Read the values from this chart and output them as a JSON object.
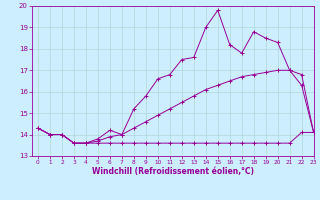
{
  "line1_x": [
    0,
    1,
    2,
    3,
    4,
    5,
    6,
    7,
    8,
    9,
    10,
    11,
    12,
    13,
    14,
    15,
    16,
    17,
    18,
    19,
    20,
    21,
    22,
    23
  ],
  "line1_y": [
    14.3,
    14.0,
    14.0,
    13.6,
    13.6,
    13.6,
    13.6,
    13.6,
    13.6,
    13.6,
    13.6,
    13.6,
    13.6,
    13.6,
    13.6,
    13.6,
    13.6,
    13.6,
    13.6,
    13.6,
    13.6,
    13.6,
    14.1,
    14.1
  ],
  "line2_x": [
    0,
    1,
    2,
    3,
    4,
    5,
    6,
    7,
    8,
    9,
    10,
    11,
    12,
    13,
    14,
    15,
    16,
    17,
    18,
    19,
    20,
    21,
    22,
    23
  ],
  "line2_y": [
    14.3,
    14.0,
    14.0,
    13.6,
    13.6,
    13.7,
    13.9,
    14.0,
    14.3,
    14.6,
    14.9,
    15.2,
    15.5,
    15.8,
    16.1,
    16.3,
    16.5,
    16.7,
    16.8,
    16.9,
    17.0,
    17.0,
    16.8,
    14.1
  ],
  "line3_x": [
    0,
    1,
    2,
    3,
    4,
    5,
    6,
    7,
    8,
    9,
    10,
    11,
    12,
    13,
    14,
    15,
    16,
    17,
    18,
    19,
    20,
    21,
    22,
    23
  ],
  "line3_y": [
    14.3,
    14.0,
    14.0,
    13.6,
    13.6,
    13.8,
    14.2,
    14.0,
    15.2,
    15.8,
    16.6,
    16.8,
    17.5,
    17.6,
    19.0,
    19.8,
    18.2,
    17.8,
    18.8,
    18.5,
    18.3,
    17.0,
    16.3,
    14.1
  ],
  "xlim": [
    -0.5,
    23
  ],
  "ylim": [
    13,
    20
  ],
  "xlabel": "Windchill (Refroidissement éolien,°C)",
  "bg_color": "#cceeff",
  "line_color": "#990099",
  "grid_color": "#b0d8d8",
  "xticks": [
    0,
    1,
    2,
    3,
    4,
    5,
    6,
    7,
    8,
    9,
    10,
    11,
    12,
    13,
    14,
    15,
    16,
    17,
    18,
    19,
    20,
    21,
    22,
    23
  ],
  "yticks": [
    13,
    14,
    15,
    16,
    17,
    18,
    19,
    20
  ],
  "xlabel_fontsize": 5.5,
  "xtick_fontsize": 4.2,
  "ytick_fontsize": 5.0,
  "linewidth": 0.7,
  "markersize": 2.5
}
